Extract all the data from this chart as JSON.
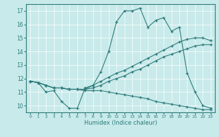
{
  "xlabel": "Humidex (Indice chaleur)",
  "xlim": [
    -0.5,
    23.5
  ],
  "ylim": [
    9.5,
    17.5
  ],
  "xticks": [
    0,
    1,
    2,
    3,
    4,
    5,
    6,
    7,
    8,
    9,
    10,
    11,
    12,
    13,
    14,
    15,
    16,
    17,
    18,
    19,
    20,
    21,
    22,
    23
  ],
  "yticks": [
    10,
    11,
    12,
    13,
    14,
    15,
    16,
    17
  ],
  "bg_color": "#c8eaea",
  "line_color": "#2d7a7a",
  "lines": [
    {
      "x": [
        0,
        1,
        2,
        3,
        4,
        5,
        6,
        7,
        8,
        9,
        10,
        11,
        12,
        13,
        14,
        15,
        16,
        17,
        18,
        19,
        20,
        21,
        22,
        23
      ],
      "y": [
        11.8,
        11.7,
        11.0,
        11.1,
        10.3,
        9.8,
        9.8,
        11.3,
        11.5,
        12.5,
        14.0,
        16.2,
        17.0,
        17.0,
        17.2,
        15.8,
        16.3,
        16.5,
        15.5,
        15.8,
        12.4,
        11.0,
        10.0,
        9.8
      ]
    },
    {
      "x": [
        0,
        1,
        2,
        3,
        4,
        5,
        6,
        7,
        8,
        9,
        10,
        11,
        12,
        13,
        14,
        15,
        16,
        17,
        18,
        19,
        20,
        21,
        22,
        23
      ],
      "y": [
        11.8,
        11.7,
        11.5,
        11.3,
        11.3,
        11.2,
        11.2,
        11.2,
        11.5,
        11.8,
        12.1,
        12.4,
        12.6,
        12.9,
        13.2,
        13.5,
        13.8,
        14.1,
        14.4,
        14.7,
        14.9,
        15.0,
        15.0,
        14.8
      ]
    },
    {
      "x": [
        0,
        1,
        2,
        3,
        4,
        5,
        6,
        7,
        8,
        9,
        10,
        11,
        12,
        13,
        14,
        15,
        16,
        17,
        18,
        19,
        20,
        21,
        22,
        23
      ],
      "y": [
        11.8,
        11.7,
        11.5,
        11.3,
        11.3,
        11.2,
        11.2,
        11.2,
        11.3,
        11.5,
        11.8,
        12.0,
        12.2,
        12.5,
        12.7,
        13.0,
        13.3,
        13.6,
        13.8,
        14.0,
        14.2,
        14.4,
        14.5,
        14.5
      ]
    },
    {
      "x": [
        0,
        1,
        2,
        3,
        4,
        5,
        6,
        7,
        8,
        9,
        10,
        11,
        12,
        13,
        14,
        15,
        16,
        17,
        18,
        19,
        20,
        21,
        22,
        23
      ],
      "y": [
        11.8,
        11.7,
        11.5,
        11.3,
        11.3,
        11.2,
        11.2,
        11.1,
        11.1,
        11.1,
        11.0,
        10.9,
        10.8,
        10.7,
        10.6,
        10.5,
        10.3,
        10.2,
        10.1,
        10.0,
        9.9,
        9.8,
        9.7,
        9.7
      ]
    }
  ]
}
